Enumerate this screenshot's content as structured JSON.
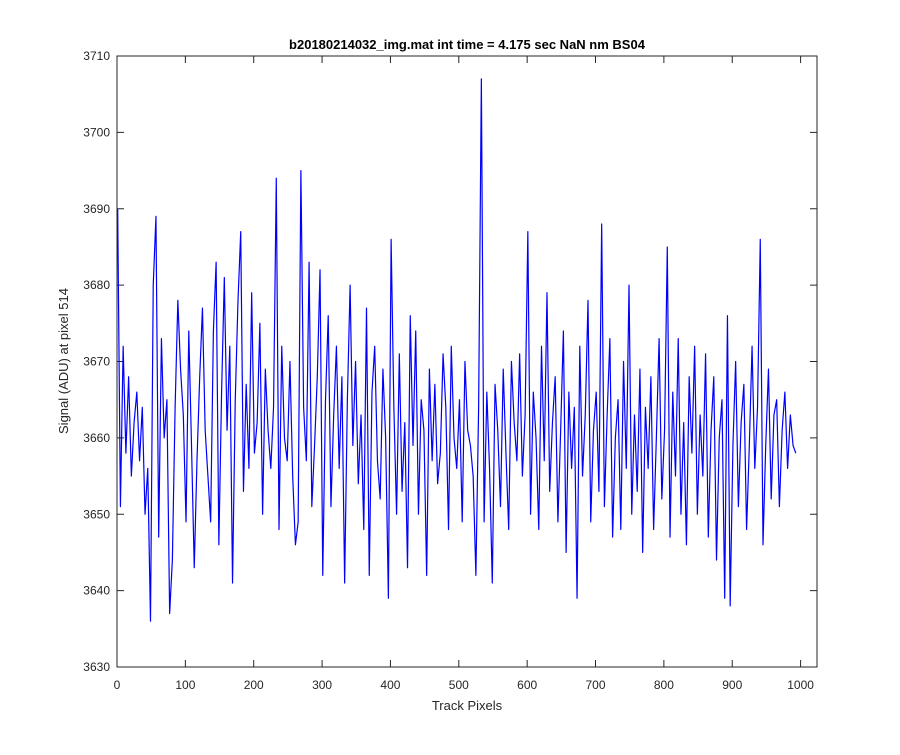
{
  "chart_data": {
    "type": "line",
    "title": "b20180214032_img.mat int time = 4.175 sec  NaN nm BS04",
    "xlabel": "Track Pixels",
    "ylabel": "Signal (ADU) at pixel 514",
    "xlim": [
      0,
      1024
    ],
    "ylim": [
      3630,
      3710
    ],
    "xticks": [
      0,
      100,
      200,
      300,
      400,
      500,
      600,
      700,
      800,
      900,
      1000
    ],
    "yticks": [
      3630,
      3640,
      3650,
      3660,
      3670,
      3680,
      3690,
      3700,
      3710
    ],
    "grid": false,
    "line_color": "#0000ff",
    "series": [
      {
        "sampling": "every 4th track pixel, starting at pixel 1",
        "x_start": 1,
        "x_step": 4,
        "y": [
          3690,
          3651,
          3672,
          3658,
          3668,
          3655,
          3662,
          3666,
          3657,
          3664,
          3650,
          3656,
          3636,
          3680,
          3689,
          3647,
          3673,
          3660,
          3665,
          3637,
          3644,
          3664,
          3678,
          3669,
          3663,
          3649,
          3674,
          3659,
          3643,
          3657,
          3668,
          3677,
          3661,
          3655,
          3649,
          3674,
          3683,
          3646,
          3666,
          3681,
          3661,
          3672,
          3641,
          3665,
          3678,
          3687,
          3653,
          3667,
          3656,
          3679,
          3658,
          3662,
          3675,
          3650,
          3669,
          3661,
          3656,
          3664,
          3694,
          3648,
          3672,
          3660,
          3657,
          3670,
          3655,
          3646,
          3649,
          3695,
          3664,
          3657,
          3683,
          3651,
          3659,
          3668,
          3682,
          3642,
          3665,
          3676,
          3651,
          3663,
          3672,
          3656,
          3668,
          3641,
          3665,
          3680,
          3659,
          3670,
          3654,
          3663,
          3648,
          3677,
          3642,
          3666,
          3672,
          3657,
          3652,
          3669,
          3660,
          3639,
          3686,
          3664,
          3650,
          3671,
          3653,
          3662,
          3643,
          3676,
          3659,
          3674,
          3650,
          3665,
          3661,
          3642,
          3669,
          3657,
          3667,
          3654,
          3658,
          3671,
          3664,
          3648,
          3672,
          3660,
          3656,
          3665,
          3649,
          3670,
          3661,
          3659,
          3655,
          3642,
          3664,
          3707,
          3649,
          3666,
          3656,
          3641,
          3667,
          3661,
          3651,
          3669,
          3658,
          3648,
          3670,
          3662,
          3657,
          3671,
          3655,
          3663,
          3687,
          3650,
          3666,
          3660,
          3648,
          3672,
          3657,
          3679,
          3653,
          3662,
          3668,
          3649,
          3661,
          3674,
          3645,
          3666,
          3656,
          3664,
          3639,
          3672,
          3655,
          3663,
          3678,
          3649,
          3661,
          3666,
          3653,
          3688,
          3651,
          3663,
          3673,
          3647,
          3660,
          3665,
          3648,
          3670,
          3656,
          3680,
          3650,
          3663,
          3653,
          3669,
          3645,
          3664,
          3656,
          3668,
          3648,
          3660,
          3673,
          3652,
          3661,
          3685,
          3647,
          3666,
          3655,
          3673,
          3650,
          3662,
          3646,
          3668,
          3658,
          3672,
          3650,
          3663,
          3655,
          3671,
          3647,
          3661,
          3668,
          3644,
          3660,
          3665,
          3639,
          3676,
          3638,
          3659,
          3670,
          3651,
          3662,
          3667,
          3648,
          3659,
          3672,
          3656,
          3664,
          3686,
          3646,
          3659,
          3669,
          3652,
          3663,
          3665,
          3651,
          3661,
          3666,
          3656,
          3663,
          3659,
          3658
        ]
      }
    ]
  }
}
